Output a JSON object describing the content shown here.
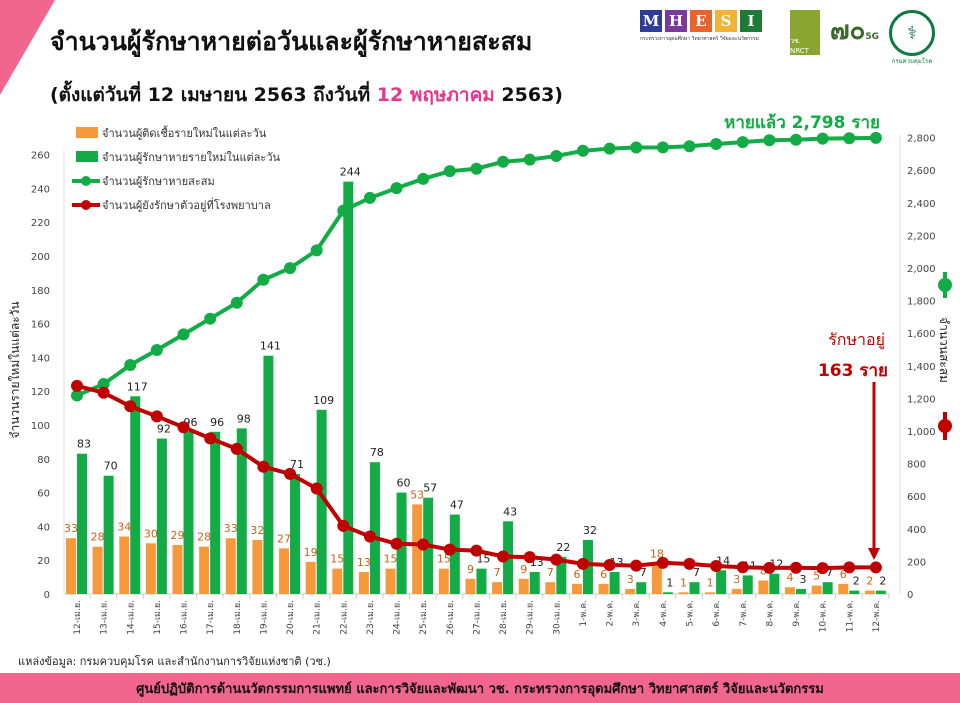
{
  "header": {
    "title": "จำนวนผู้รักษาหายต่อวันและผู้รักษาหายสะสม",
    "subtitle_pre": "(ตั้งแต่วันที่ 12 เมษายน 2563 ถึงวันที่ ",
    "subtitle_hl": "12 พฤษภาคม",
    "subtitle_post": " 2563)"
  },
  "logos": {
    "mhesi_letters": [
      "M",
      "H",
      "E",
      "S",
      "I"
    ],
    "mhesi_colors": [
      "#2e3d98",
      "#7a3a9a",
      "#e8642c",
      "#f2b233",
      "#1f7a3a"
    ],
    "mhesi_sub": "กระทรวงการอุดมศึกษา วิทยาศาสตร์ วิจัยและนวัตกรรม",
    "nrct": "วช. NRCT",
    "seventy": "๗๐",
    "seventy_sub": "5G",
    "ddc_label": "กรมควบคุมโรค"
  },
  "colors": {
    "orange": "#f7993a",
    "green": "#12ab45",
    "red": "#c00000",
    "pink": "#e8368a"
  },
  "chart_data": {
    "type": "bar+line",
    "title": "จำนวนผู้รักษาหายต่อวันและผู้รักษาหายสะสม",
    "ylabel": "จำนวนรายใหม่ในแต่ละวัน",
    "y2label": "จำนวนสะสม",
    "ylim": [
      0,
      270
    ],
    "y2lim": [
      0,
      2800
    ],
    "yticks": [
      0,
      20,
      40,
      60,
      80,
      100,
      120,
      140,
      160,
      180,
      200,
      220,
      240,
      260
    ],
    "y2ticks": [
      "0",
      "200",
      "400",
      "600",
      "800",
      "1,000",
      "1,200",
      "1,400",
      "1,600",
      "1,800",
      "2,000",
      "2,200",
      "2,400",
      "2,600",
      "2,800"
    ],
    "categories": [
      "12-เม.ย.",
      "13-เม.ย.",
      "14-เม.ย.",
      "15-เม.ย.",
      "16-เม.ย.",
      "17-เม.ย.",
      "18-เม.ย.",
      "19-เม.ย.",
      "20-เม.ย.",
      "21-เม.ย.",
      "22-เม.ย.",
      "23-เม.ย.",
      "24-เม.ย.",
      "25-เม.ย.",
      "26-เม.ย.",
      "27-เม.ย.",
      "28-เม.ย.",
      "29-เม.ย.",
      "30-เม.ย.",
      "1-พ.ค.",
      "2-พ.ค.",
      "3-พ.ค.",
      "4-พ.ค.",
      "5-พ.ค.",
      "6-พ.ค.",
      "7-พ.ค.",
      "8-พ.ค.",
      "9-พ.ค.",
      "10-พ.ค.",
      "11-พ.ค.",
      "12-พ.ค."
    ],
    "series": [
      {
        "name": "จำนวนผู้ติดเชื้อรายใหม่ในแต่ละวัน",
        "type": "bar",
        "axis": "left",
        "values": [
          33,
          28,
          34,
          30,
          29,
          28,
          33,
          32,
          27,
          19,
          15,
          13,
          15,
          53,
          15,
          9,
          7,
          9,
          7,
          6,
          6,
          3,
          18,
          1,
          1,
          3,
          8,
          4,
          5,
          6,
          2
        ]
      },
      {
        "name": "จำนวนผู้รักษาหายรายใหม่ในแต่ละวัน",
        "type": "bar",
        "axis": "left",
        "values": [
          83,
          70,
          117,
          92,
          96,
          96,
          98,
          141,
          71,
          109,
          244,
          78,
          60,
          57,
          47,
          15,
          43,
          13,
          22,
          32,
          13,
          7,
          1,
          7,
          14,
          11,
          12,
          3,
          7,
          2,
          2
        ]
      },
      {
        "name": "จำนวนผู้รักษาหายสะสม",
        "type": "line",
        "axis": "right",
        "values": [
          1218,
          1288,
          1405,
          1497,
          1593,
          1689,
          1787,
          1928,
          1999,
          2108,
          2352,
          2430,
          2490,
          2547,
          2594,
          2609,
          2652,
          2665,
          2687,
          2719,
          2732,
          2739,
          2740,
          2747,
          2761,
          2772,
          2784,
          2787,
          2794,
          2796,
          2798
        ]
      },
      {
        "name": "จำนวนผู้ยังรักษาตัวอยู่ที่โรงพยาบาล",
        "type": "line",
        "axis": "right",
        "values": [
          1277,
          1235,
          1152,
          1090,
          1023,
          955,
          890,
          781,
          737,
          647,
          418,
          353,
          308,
          304,
          272,
          266,
          230,
          226,
          211,
          185,
          178,
          174,
          191,
          185,
          172,
          164,
          160,
          161,
          159,
          163,
          163
        ]
      }
    ],
    "legend_position": "top-left",
    "annotations": {
      "recovered": "หายแล้ว 2,798 ราย",
      "in_treatment_line1": "รักษาอยู่",
      "in_treatment_line2": "163 ราย"
    }
  },
  "source": "แหล่งข้อมูล: กรมควบคุมโรค และสำนักงานการวิจัยแห่งชาติ (วช.)",
  "footer": "ศูนย์ปฏิบัติการด้านนวัตกรรมการแพทย์ และการวิจัยและพัฒนา   วช.   กระทรวงการอุดมศึกษา วิทยาศาสตร์ วิจัยและนวัตกรรม"
}
